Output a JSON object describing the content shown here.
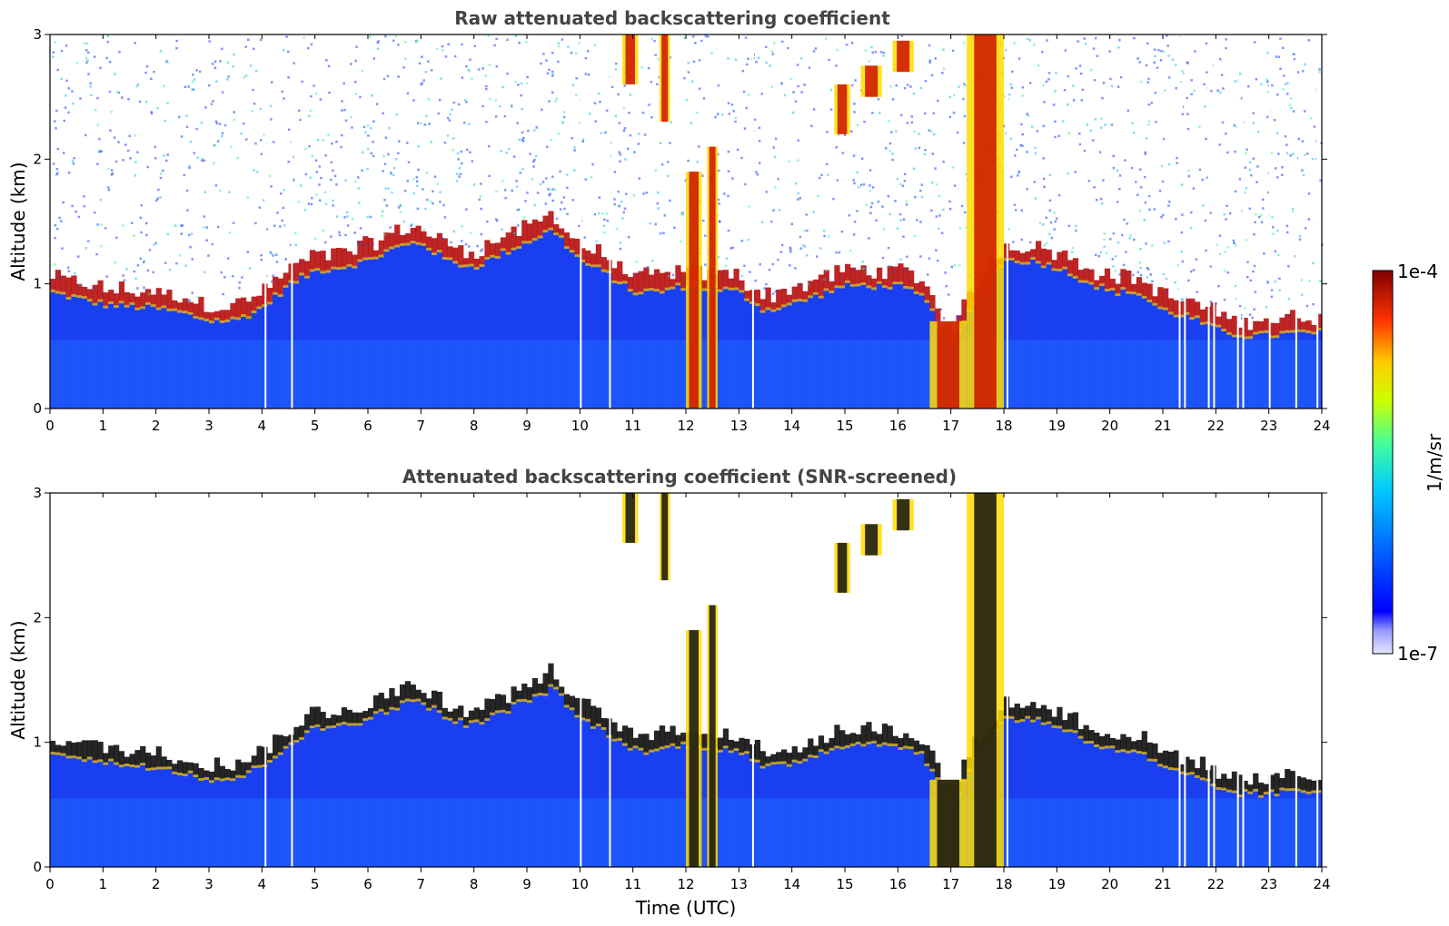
{
  "chart_data": [
    {
      "type": "heatmap",
      "title": "Raw attenuated backscattering coefficient",
      "xlabel": "",
      "ylabel": "Altitude (km)",
      "xlim": [
        0,
        24
      ],
      "ylim": [
        0,
        3
      ],
      "x_ticks": [
        "0",
        "1",
        "2",
        "3",
        "4",
        "5",
        "6",
        "7",
        "8",
        "9",
        "10",
        "11",
        "12",
        "13",
        "14",
        "15",
        "16",
        "17",
        "18",
        "19",
        "20",
        "21",
        "22",
        "23",
        "24"
      ],
      "y_ticks": [
        "0",
        "1",
        "2",
        "3"
      ],
      "boundary_layer_top_km": [
        [
          0,
          0.95
        ],
        [
          0.5,
          0.9
        ],
        [
          1,
          0.85
        ],
        [
          2,
          0.82
        ],
        [
          2.5,
          0.78
        ],
        [
          3,
          0.72
        ],
        [
          3.5,
          0.72
        ],
        [
          4,
          0.82
        ],
        [
          4.5,
          1.0
        ],
        [
          5,
          1.12
        ],
        [
          5.5,
          1.15
        ],
        [
          6,
          1.2
        ],
        [
          6.5,
          1.3
        ],
        [
          7,
          1.35
        ],
        [
          7.5,
          1.2
        ],
        [
          8,
          1.15
        ],
        [
          9,
          1.35
        ],
        [
          9.5,
          1.45
        ],
        [
          10,
          1.2
        ],
        [
          10.5,
          1.1
        ],
        [
          11,
          0.95
        ],
        [
          11.5,
          0.95
        ],
        [
          12,
          1.0
        ],
        [
          13,
          0.95
        ],
        [
          13.5,
          0.8
        ],
        [
          14,
          0.85
        ],
        [
          15,
          1.0
        ],
        [
          15.5,
          1.0
        ],
        [
          16,
          1.0
        ],
        [
          16.5,
          0.9
        ],
        [
          17,
          0.5
        ],
        [
          17.5,
          0.9
        ],
        [
          18,
          1.2
        ],
        [
          18.5,
          1.2
        ],
        [
          19,
          1.15
        ],
        [
          19.5,
          1.05
        ],
        [
          20,
          0.95
        ],
        [
          20.5,
          0.95
        ],
        [
          21,
          0.8
        ],
        [
          21.5,
          0.75
        ],
        [
          22,
          0.65
        ],
        [
          22.5,
          0.6
        ],
        [
          23,
          0.6
        ],
        [
          23.5,
          0.62
        ],
        [
          24,
          0.62
        ]
      ],
      "cloud_features": [
        {
          "x_start": 10.8,
          "x_end": 11.1,
          "y_bottom": 2.6,
          "y_top": 3.0
        },
        {
          "x_start": 11.5,
          "x_end": 11.7,
          "y_bottom": 2.3,
          "y_top": 3.0
        },
        {
          "x_start": 12.0,
          "x_end": 12.3,
          "y_bottom": 0.0,
          "y_top": 1.9
        },
        {
          "x_start": 12.4,
          "x_end": 12.6,
          "y_bottom": 0.0,
          "y_top": 2.1
        },
        {
          "x_start": 14.8,
          "x_end": 15.1,
          "y_bottom": 2.2,
          "y_top": 2.6
        },
        {
          "x_start": 15.3,
          "x_end": 15.7,
          "y_bottom": 2.5,
          "y_top": 2.75
        },
        {
          "x_start": 15.9,
          "x_end": 16.3,
          "y_bottom": 2.7,
          "y_top": 2.95
        },
        {
          "x_start": 16.6,
          "x_end": 17.3,
          "y_bottom": 0.0,
          "y_top": 0.7
        },
        {
          "x_start": 17.3,
          "x_end": 18.0,
          "y_bottom": 0.0,
          "y_top": 3.0
        }
      ],
      "data_gaps_utc": [
        4.05,
        4.55,
        10.0,
        10.55,
        13.25,
        18.05,
        21.3,
        21.4,
        21.85,
        21.95,
        22.4,
        22.5,
        23.0,
        23.5,
        23.9
      ]
    },
    {
      "type": "heatmap",
      "title": "Attenuated backscattering coefficient (SNR-screened)",
      "xlabel": "Time (UTC)",
      "ylabel": "Altitude (km)",
      "xlim": [
        0,
        24
      ],
      "ylim": [
        0,
        3
      ],
      "x_ticks": [
        "0",
        "1",
        "2",
        "3",
        "4",
        "5",
        "6",
        "7",
        "8",
        "9",
        "10",
        "11",
        "12",
        "13",
        "14",
        "15",
        "16",
        "17",
        "18",
        "19",
        "20",
        "21",
        "22",
        "23",
        "24"
      ],
      "y_ticks": [
        "0",
        "1",
        "2",
        "3"
      ]
    }
  ],
  "colorbar": {
    "label": "1/m/sr",
    "min_label": "1e-7",
    "max_label": "1e-4",
    "scale": "log",
    "range": [
      1e-07,
      0.0001
    ],
    "colormap": "jet"
  }
}
